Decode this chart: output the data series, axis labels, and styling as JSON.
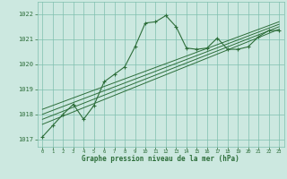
{
  "bg_color": "#cce8e0",
  "grid_color": "#7fbfaf",
  "line_color": "#2d6e3a",
  "text_color": "#2d6e3a",
  "xlabel": "Graphe pression niveau de la mer (hPa)",
  "ylim": [
    1016.7,
    1022.5
  ],
  "xlim": [
    -0.5,
    23.5
  ],
  "yticks": [
    1017,
    1018,
    1019,
    1020,
    1021,
    1022
  ],
  "xticks": [
    0,
    1,
    2,
    3,
    4,
    5,
    6,
    7,
    8,
    9,
    10,
    11,
    12,
    13,
    14,
    15,
    16,
    17,
    18,
    19,
    20,
    21,
    22,
    23
  ],
  "main_series": {
    "x": [
      0,
      1,
      2,
      3,
      4,
      5,
      6,
      7,
      8,
      9,
      10,
      11,
      12,
      13,
      14,
      15,
      16,
      17,
      18,
      19,
      20,
      21,
      22,
      23
    ],
    "y": [
      1017.1,
      1017.55,
      1018.0,
      1018.4,
      1017.8,
      1018.35,
      1019.3,
      1019.6,
      1019.9,
      1020.7,
      1021.65,
      1021.7,
      1021.95,
      1021.5,
      1020.65,
      1020.6,
      1020.65,
      1021.05,
      1020.6,
      1020.6,
      1020.7,
      1021.1,
      1021.35,
      1021.35
    ]
  },
  "trend1": {
    "x": [
      0,
      23
    ],
    "y": [
      1017.6,
      1021.4
    ]
  },
  "trend2": {
    "x": [
      0,
      23
    ],
    "y": [
      1017.8,
      1021.5
    ]
  },
  "trend3": {
    "x": [
      0,
      23
    ],
    "y": [
      1018.0,
      1021.6
    ]
  },
  "trend4": {
    "x": [
      0,
      23
    ],
    "y": [
      1018.2,
      1021.7
    ]
  }
}
